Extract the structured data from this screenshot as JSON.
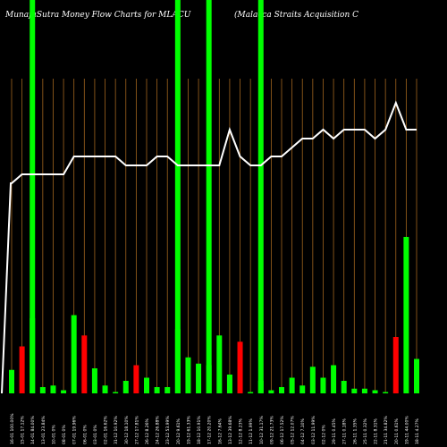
{
  "header": {
    "title_left": "MunafaSutra  Money Flow  Charts for MLACU",
    "title_right": "(Malacca  Straits Acquisition  C"
  },
  "chart_data": {
    "type": "bar",
    "title": "MunafaSutra  Money Flow  Charts for MLACU",
    "subtitle": "(Malacca  Straits Acquisition  C",
    "xlabel": "",
    "ylabel": "",
    "grid": true,
    "colors": {
      "up": "#00ff00",
      "down": "#ff0000",
      "price_line": "#ffffff",
      "grid": "#a0641e",
      "highlight": "#00ff00",
      "background": "#000000"
    },
    "categories": [
      "16-01-2025",
      "15-01-2025",
      "14-01-2025",
      "13-01-2025",
      "10-01-2025",
      "08-01-2025",
      "07-01-2025",
      "06-01-2025",
      "03-01-2025",
      "02-01-2025",
      "31-12-2024",
      "30-12-2024",
      "27-12-2024",
      "26-12-2024",
      "24-12-2024",
      "23-12-2024",
      "20-12-2024",
      "19-12-2024",
      "18-12-2024",
      "17-12-2024",
      "16-12-2024",
      "13-12-2024",
      "12-12-2024",
      "11-12-2024",
      "10-12-2024",
      "09-12-2024",
      "06-12-2024",
      "05-12-2024",
      "04-12-2024",
      "03-12-2024",
      "02-12-2024",
      "29-11-2024",
      "27-11-2024",
      "26-11-2024",
      "25-11-2024",
      "22-11-2024",
      "21-11-2024",
      "20-11-2024",
      "19-11-2024",
      "18-11-2024"
    ],
    "tick_labels": [
      "16-01 100.00%",
      "15-01 17.12%",
      "14-01 84.00%",
      "13-01 23.84%",
      "10-01 0%",
      "08-01 0%",
      "07-01 19.96%",
      "06-01 0%",
      "03-01 0%",
      "02-01 16.62%",
      "31-12 10.92%",
      "30-12 18.10%",
      "27-12 17.81%",
      "26-12 8.26%",
      "24-12 26.88%",
      "23-12 53.99%",
      "20-12 9.61%",
      "19-12 61.33%",
      "18-12 10.91%",
      "17-12 20.20%",
      "16-12 7.64%",
      "13-12 39.68%",
      "12-12 8.23%",
      "11-12 1.99%",
      "10-12 31.17%",
      "09-12 21.73%",
      "06-12 17.52%",
      "05-12 12.07%",
      "04-12 7.10%",
      "03-12 11.99%",
      "02-12 0%",
      "29-11 0.45%",
      "27-11 0.18%",
      "26-11 1.35%",
      "25-11 0.32%",
      "22-11 8.31%",
      "21-11 34.82%",
      "20-11 0.61%",
      "19-11 44.00%",
      "18-11 4.27%"
    ],
    "values": [
      15,
      30,
      48,
      4,
      5,
      2,
      50,
      37,
      16,
      5,
      0,
      8,
      18,
      10,
      4,
      4,
      41,
      23,
      19,
      18,
      37,
      12,
      33,
      0,
      8,
      2,
      4,
      10,
      5,
      17,
      10,
      18,
      8,
      3,
      3,
      2,
      0,
      36,
      100,
      22
    ],
    "directions": [
      "up",
      "down",
      "up",
      "up",
      "up",
      "up",
      "up",
      "down",
      "up",
      "up",
      "up",
      "up",
      "down",
      "up",
      "up",
      "up",
      "up",
      "up",
      "up",
      "up",
      "up",
      "up",
      "down",
      "up",
      "up",
      "up",
      "up",
      "up",
      "up",
      "up",
      "up",
      "up",
      "up",
      "up",
      "up",
      "up",
      "up",
      "down",
      "up",
      "up"
    ],
    "price_line": [
      1.0,
      1.01,
      1.01,
      1.01,
      1.01,
      1.01,
      1.03,
      1.03,
      1.03,
      1.03,
      1.03,
      1.02,
      1.02,
      1.02,
      1.03,
      1.03,
      1.02,
      1.02,
      1.02,
      1.02,
      1.02,
      1.06,
      1.03,
      1.02,
      1.02,
      1.03,
      1.03,
      1.04,
      1.05,
      1.05,
      1.06,
      1.05,
      1.06,
      1.06,
      1.06,
      1.05,
      1.06,
      1.09,
      1.06,
      1.06
    ],
    "highlighted_columns": [
      2,
      16,
      19,
      24
    ]
  }
}
